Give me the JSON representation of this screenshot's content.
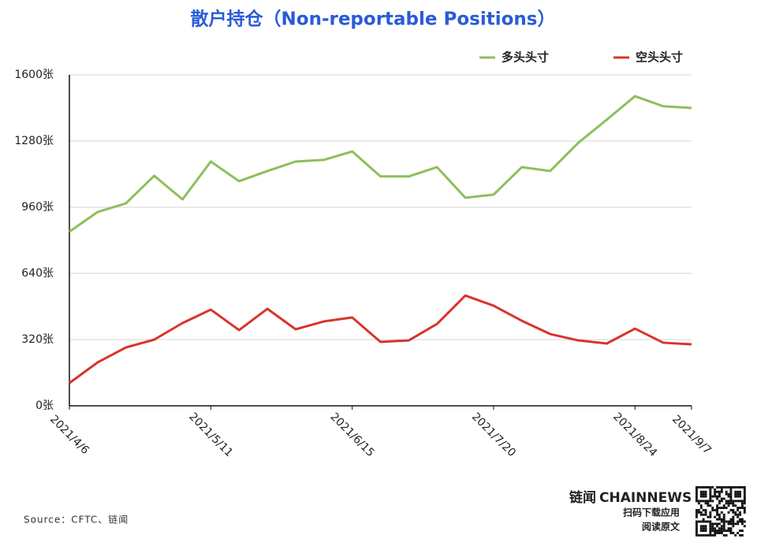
{
  "chart_data": {
    "type": "line",
    "title": "散户持仓（Non-reportable Positions）",
    "categories": [
      "2021/4/6",
      null,
      null,
      null,
      null,
      "2021/5/11",
      null,
      null,
      null,
      null,
      "2021/6/15",
      null,
      null,
      null,
      null,
      "2021/7/20",
      null,
      null,
      null,
      null,
      "2021/8/24",
      null,
      "2021/9/7"
    ],
    "series": [
      {
        "name": "多头头寸",
        "color": "#8dbf5a",
        "values": [
          842,
          937,
          979,
          1112,
          998,
          1181,
          1086,
          1135,
          1181,
          1189,
          1230,
          1109,
          1109,
          1154,
          1006,
          1021,
          1154,
          1135,
          1272,
          1383,
          1497,
          1448,
          1440
        ]
      },
      {
        "name": "空头头寸",
        "color": "#d8342c",
        "values": [
          110,
          210,
          282,
          320,
          400,
          465,
          366,
          469,
          370,
          408,
          427,
          309,
          316,
          396,
          533,
          484,
          411,
          347,
          316,
          301,
          373,
          305,
          297
        ]
      }
    ],
    "ylim": [
      0,
      1600
    ],
    "yticks": [
      {
        "value": 0,
        "label": "0张"
      },
      {
        "value": 320,
        "label": "320张"
      },
      {
        "value": 640,
        "label": "640张"
      },
      {
        "value": 960,
        "label": "960张"
      },
      {
        "value": 1280,
        "label": "1280张"
      },
      {
        "value": 1600,
        "label": "1600张"
      }
    ],
    "grid": true,
    "legend": "top-right",
    "source": "Source：CFTC、链闻",
    "brand": {
      "name": "链闻",
      "name_en": "CHAINNEWS",
      "line1": "扫码下载应用",
      "line2": "阅读原文"
    }
  }
}
